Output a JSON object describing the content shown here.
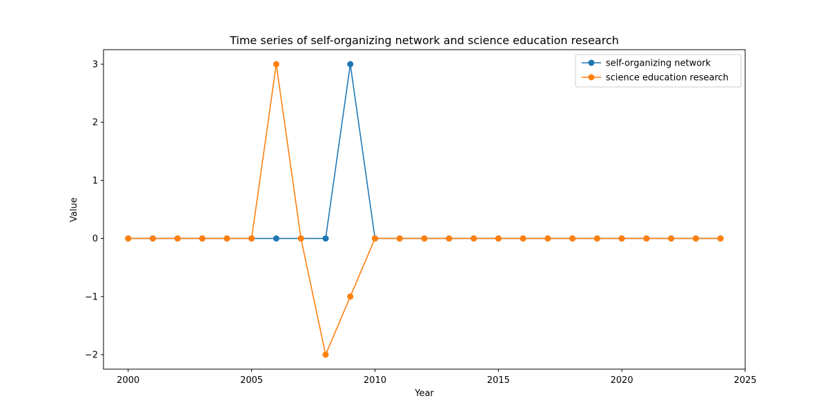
{
  "chart_data": {
    "type": "line",
    "title": "Time series of self-organizing network and science education research",
    "xlabel": "Year",
    "ylabel": "Value",
    "xlim": [
      1999,
      2025
    ],
    "ylim": [
      -2.25,
      3.25
    ],
    "x_ticks": [
      2000,
      2005,
      2010,
      2015,
      2020,
      2025
    ],
    "x_tick_labels": [
      "2000",
      "2005",
      "2010",
      "2015",
      "2020",
      "2025"
    ],
    "y_ticks": [
      -2,
      -1,
      0,
      1,
      2,
      3
    ],
    "y_tick_labels": [
      "−2",
      "−1",
      "0",
      "1",
      "2",
      "3"
    ],
    "legend_position": "top-right",
    "grid": false,
    "x": [
      2000,
      2001,
      2002,
      2003,
      2004,
      2005,
      2006,
      2007,
      2008,
      2009,
      2010,
      2011,
      2012,
      2013,
      2014,
      2015,
      2016,
      2017,
      2018,
      2019,
      2020,
      2021,
      2022,
      2023,
      2024
    ],
    "series": [
      {
        "name": "self-organizing network",
        "color": "#1f77b4",
        "values": [
          0,
          0,
          0,
          0,
          0,
          0,
          0,
          0,
          0,
          3,
          0,
          0,
          0,
          0,
          0,
          0,
          0,
          0,
          0,
          0,
          0,
          0,
          0,
          0,
          0
        ]
      },
      {
        "name": "science education research",
        "color": "#ff7f0e",
        "values": [
          0,
          0,
          0,
          0,
          0,
          0,
          3,
          0,
          -2,
          -1,
          0,
          0,
          0,
          0,
          0,
          0,
          0,
          0,
          0,
          0,
          0,
          0,
          0,
          0,
          0
        ]
      }
    ]
  }
}
